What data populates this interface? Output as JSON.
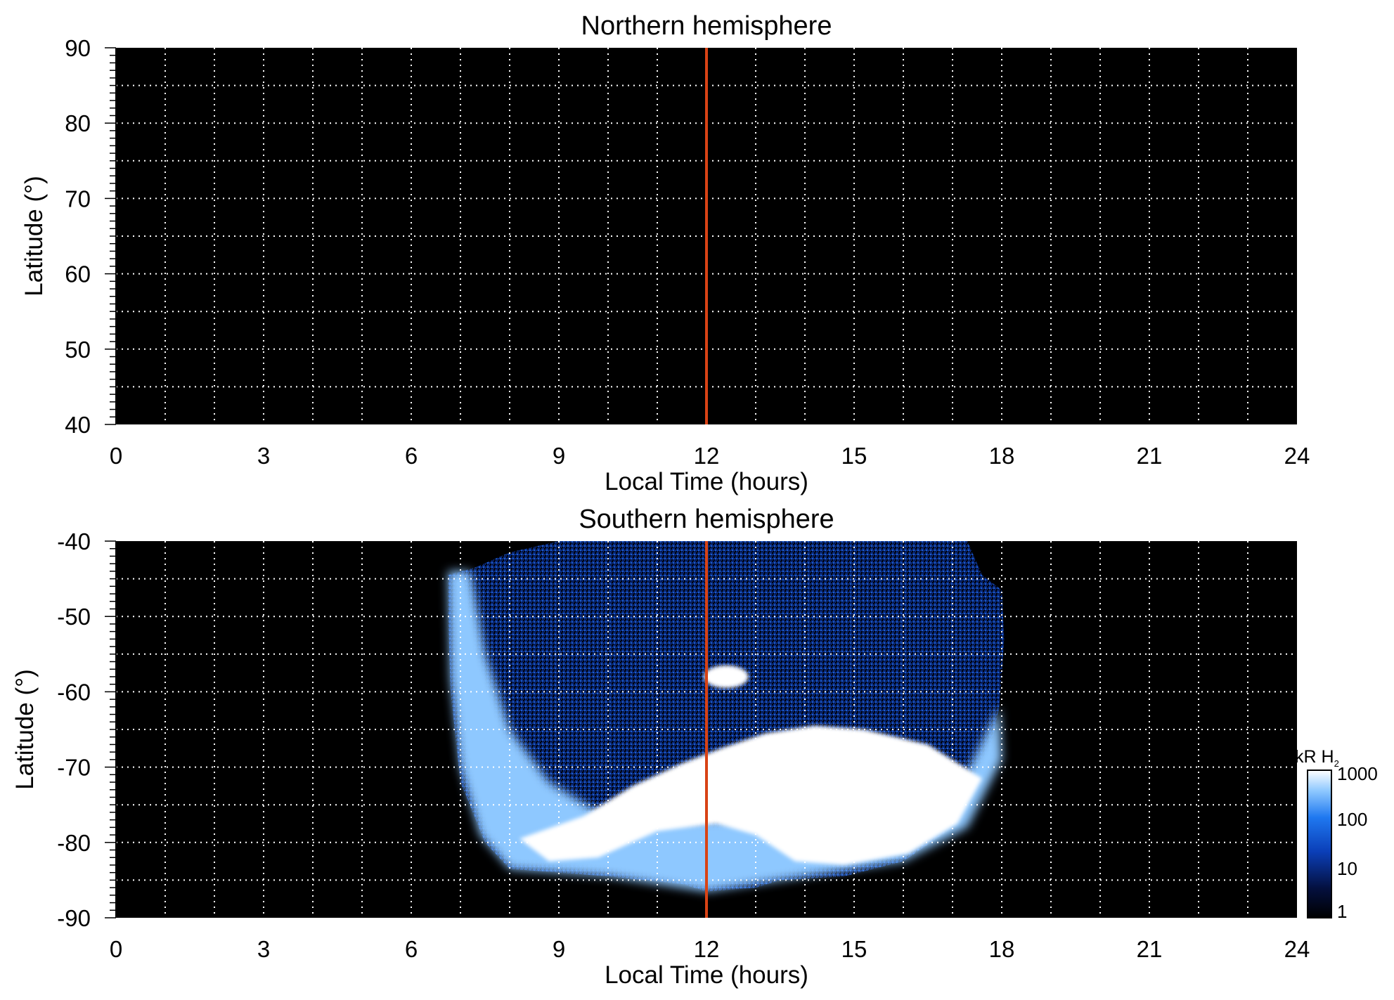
{
  "chart_data": [
    {
      "type": "heatmap",
      "title": "Northern hemisphere",
      "xlabel": "Local Time (hours)",
      "ylabel": "Latitude (°)",
      "xlim": [
        0,
        24
      ],
      "ylim": [
        40,
        90
      ],
      "xticks": [
        0,
        3,
        6,
        9,
        12,
        15,
        18,
        21,
        24
      ],
      "yticks": [
        40,
        50,
        60,
        70,
        80,
        90
      ],
      "grid": true,
      "background": "#000000",
      "reference_line": {
        "x": 12,
        "color": "#d84315"
      },
      "emission_regions": []
    },
    {
      "type": "heatmap",
      "title": "Southern hemisphere",
      "xlabel": "Local Time (hours)",
      "ylabel": "Latitude (°)",
      "xlim": [
        0,
        24
      ],
      "ylim": [
        -90,
        -40
      ],
      "xticks": [
        0,
        3,
        6,
        9,
        12,
        15,
        18,
        21,
        24
      ],
      "yticks": [
        -40,
        -50,
        -60,
        -70,
        -80,
        -90
      ],
      "grid": true,
      "background": "#000000",
      "reference_line": {
        "x": 12,
        "color": "#d84315"
      },
      "observed_region": {
        "outline": [
          [
            6.75,
            -44.5
          ],
          [
            7.3,
            -43.5
          ],
          [
            8.0,
            -41.5
          ],
          [
            9.0,
            -40.0
          ],
          [
            17.3,
            -40.0
          ],
          [
            17.6,
            -44.5
          ],
          [
            18.0,
            -46.5
          ],
          [
            18.05,
            -53
          ],
          [
            17.95,
            -62
          ],
          [
            17.7,
            -70
          ],
          [
            17.0,
            -78
          ],
          [
            16.0,
            -82.5
          ],
          [
            14.8,
            -84.5
          ],
          [
            13.5,
            -85.0
          ],
          [
            13.0,
            -86.0
          ],
          [
            12.0,
            -86.5
          ],
          [
            11.5,
            -85.5
          ],
          [
            10.0,
            -84.5
          ],
          [
            9.0,
            -84.0
          ],
          [
            8.0,
            -83.5
          ],
          [
            7.5,
            -80
          ],
          [
            7.0,
            -72
          ],
          [
            6.8,
            -60
          ],
          [
            6.75,
            -50
          ]
        ],
        "level_kR": 5
      },
      "emission_regions": [
        {
          "level_kR": 200,
          "outline": [
            [
              6.75,
              -44
            ],
            [
              7.2,
              -44
            ],
            [
              7.5,
              -55
            ],
            [
              8.0,
              -65
            ],
            [
              8.8,
              -72
            ],
            [
              9.8,
              -76
            ],
            [
              12.0,
              -77
            ],
            [
              14.5,
              -76
            ],
            [
              17.2,
              -72
            ],
            [
              17.95,
              -62
            ],
            [
              18.0,
              -69
            ],
            [
              17.3,
              -78
            ],
            [
              16.0,
              -82.5
            ],
            [
              13.5,
              -85.0
            ],
            [
              12.0,
              -86.5
            ],
            [
              10.0,
              -84.5
            ],
            [
              8.0,
              -83.5
            ],
            [
              7.4,
              -79
            ],
            [
              7.0,
              -70
            ],
            [
              6.8,
              -58
            ]
          ]
        },
        {
          "level_kR": 1000,
          "outline": [
            [
              8.2,
              -79.5
            ],
            [
              9.5,
              -76.5
            ],
            [
              10.5,
              -72.5
            ],
            [
              11.5,
              -69.5
            ],
            [
              12.3,
              -67.5
            ],
            [
              13.2,
              -65.5
            ],
            [
              14.2,
              -64.5
            ],
            [
              15.2,
              -65
            ],
            [
              16.5,
              -67
            ],
            [
              17.6,
              -71.5
            ],
            [
              17.1,
              -77.5
            ],
            [
              16.1,
              -81.5
            ],
            [
              14.8,
              -83
            ],
            [
              13.8,
              -82.5
            ],
            [
              13.0,
              -79
            ],
            [
              12.2,
              -77.5
            ],
            [
              11.0,
              -78.5
            ],
            [
              9.8,
              -82
            ],
            [
              8.8,
              -82.5
            ]
          ]
        },
        {
          "level_kR": 1000,
          "center": [
            12.4,
            -58.0
          ],
          "size": [
            0.9,
            3.0
          ]
        }
      ]
    }
  ],
  "colorbar": {
    "label": "kR H",
    "label_subscript": "2",
    "scale": "log",
    "ticks": [
      "1000",
      "100",
      "10",
      "1"
    ],
    "range": [
      1,
      1000
    ],
    "colors": [
      "#000000",
      "#04103f",
      "#0b3fb8",
      "#1f78f0",
      "#8ec8ff",
      "#ffffff"
    ]
  }
}
